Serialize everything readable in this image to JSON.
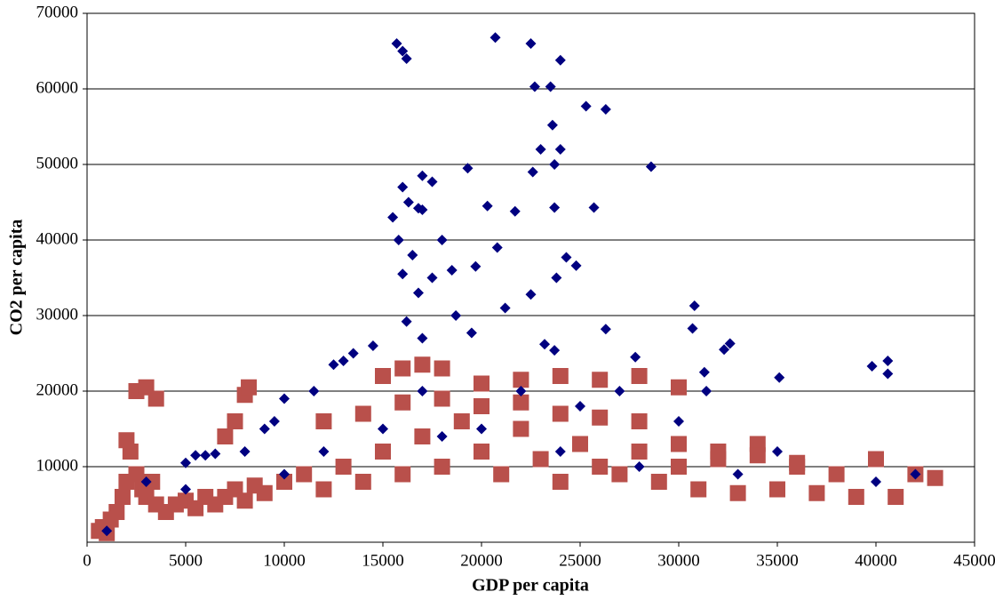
{
  "chart_data": {
    "type": "scatter",
    "x_label": "GDP per capita",
    "y_label": "CO2 per capita",
    "xlim": [
      0,
      45000
    ],
    "xticks": [
      0,
      5000,
      10000,
      15000,
      20000,
      25000,
      30000,
      35000,
      40000,
      45000
    ],
    "ylim": [
      0,
      70000
    ],
    "yticks": [
      10000,
      20000,
      30000,
      40000,
      50000,
      60000,
      70000
    ],
    "grid": true,
    "series": [
      {
        "color": "#b9504b",
        "marker": "square",
        "x": [
          600,
          800,
          1000,
          1200,
          1500,
          1800,
          2000,
          2200,
          2500,
          2800,
          3000,
          3300,
          3500,
          4000,
          4500,
          5000,
          5500,
          6000,
          6500,
          7000,
          7500,
          8000,
          8500,
          9000,
          10000,
          11000,
          12000,
          13000,
          14000,
          15000,
          16000,
          17000,
          18000,
          19000,
          20000,
          21000,
          22000,
          23000,
          24000,
          25000,
          26000,
          27000,
          28000,
          29000,
          30000,
          31000,
          32000,
          33000,
          34000,
          35000,
          36000,
          37000,
          38000,
          39000,
          40000,
          41000,
          42000,
          43000,
          2500,
          3000,
          3500,
          2000,
          7000,
          7500,
          8000,
          8200,
          15000,
          16000,
          17000,
          18000,
          20000,
          22000,
          24000,
          26000,
          28000,
          30000,
          12000,
          14000,
          16000,
          18000,
          20000,
          22000,
          24000,
          26000,
          28000,
          30000,
          32000,
          34000,
          36000
        ],
        "values": [
          1500,
          2000,
          1200,
          3000,
          4000,
          6000,
          8000,
          12000,
          9000,
          7000,
          6000,
          8000,
          5000,
          4000,
          5000,
          5500,
          4500,
          6000,
          5000,
          6000,
          7000,
          5500,
          7500,
          6500,
          8000,
          9000,
          7000,
          10000,
          8000,
          12000,
          9000,
          14000,
          10000,
          16000,
          12000,
          9000,
          15000,
          11000,
          8000,
          13000,
          10000,
          9000,
          12000,
          8000,
          10000,
          7000,
          11000,
          6500,
          13000,
          7000,
          10000,
          6500,
          9000,
          6000,
          11000,
          6000,
          9000,
          8500,
          20000,
          20500,
          19000,
          13500,
          14000,
          16000,
          19500,
          20500,
          22000,
          23000,
          23500,
          23000,
          21000,
          21500,
          22000,
          21500,
          22000,
          20500,
          16000,
          17000,
          18500,
          19000,
          18000,
          18500,
          17000,
          16500,
          16000,
          13000,
          12000,
          11500,
          10500
        ]
      },
      {
        "color": "#000080",
        "marker": "diamond",
        "x": [
          15700,
          16000,
          16200,
          20700,
          22500,
          24000,
          22700,
          23500,
          16000,
          17000,
          17500,
          19300,
          22600,
          23000,
          23600,
          24000,
          23700,
          25300,
          26300,
          28600,
          15500,
          16300,
          16800,
          17000,
          20300,
          21700,
          23700,
          25700,
          15800,
          16500,
          18000,
          20800,
          24300,
          24800,
          16000,
          17500,
          18500,
          19700,
          23800,
          16800,
          21200,
          22500,
          30800,
          18700,
          16200,
          19500,
          17000,
          23200,
          23700,
          26300,
          30700,
          32300,
          32600,
          27800,
          31300,
          35100,
          39800,
          40600,
          40600,
          31400,
          13000,
          13500,
          14500,
          12500,
          11500,
          10000,
          9500,
          9000,
          5000,
          5500,
          6000,
          6500,
          1000,
          3000,
          5000,
          10000,
          15000,
          20000,
          25000,
          30000,
          35000,
          40000,
          42000,
          17000,
          22000,
          27000,
          8000,
          12000,
          18000,
          24000,
          28000,
          33000
        ],
        "values": [
          66000,
          65000,
          64000,
          66800,
          66000,
          63800,
          60300,
          60300,
          47000,
          48500,
          47700,
          49500,
          49000,
          52000,
          55200,
          52000,
          50000,
          57700,
          57300,
          49700,
          43000,
          45000,
          44200,
          44000,
          44500,
          43800,
          44300,
          44300,
          40000,
          38000,
          40000,
          39000,
          37700,
          36600,
          35500,
          35000,
          36000,
          36500,
          35000,
          33000,
          31000,
          32800,
          31300,
          30000,
          29200,
          27700,
          27000,
          26200,
          25400,
          28200,
          28300,
          25500,
          26300,
          24500,
          22500,
          21800,
          23300,
          24000,
          22300,
          20000,
          24000,
          25000,
          26000,
          23500,
          20000,
          19000,
          16000,
          15000,
          10500,
          11500,
          11500,
          11700,
          1500,
          8000,
          7000,
          9000,
          15000,
          15000,
          18000,
          16000,
          12000,
          8000,
          9000,
          20000,
          20000,
          20000,
          12000,
          12000,
          14000,
          12000,
          10000,
          9000
        ]
      }
    ]
  }
}
